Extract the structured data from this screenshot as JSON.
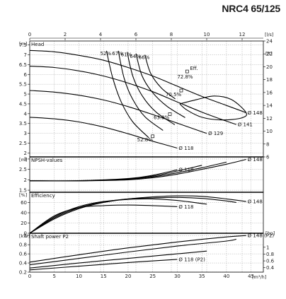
{
  "header": {
    "model": "NRC4 65/125"
  },
  "chart_data": {
    "type": "line",
    "x_top": {
      "unit": "[l/s]",
      "ticks": [
        0,
        2,
        4,
        6,
        8,
        10,
        12
      ],
      "range": [
        0,
        13.2
      ]
    },
    "x_bottom": {
      "unit": "[m³/h]",
      "ticks": [
        0,
        5,
        10,
        15,
        20,
        25,
        30,
        35,
        40,
        45
      ],
      "range": [
        0,
        47.5
      ]
    },
    "panels": [
      {
        "id": "head",
        "title": "Head",
        "yunit": "[m]",
        "ylim": [
          1.8,
          7.7
        ],
        "yticks": [
          2,
          2.5,
          3,
          3.5,
          4,
          4.5,
          5,
          5.5,
          6,
          6.5,
          7,
          7.5
        ],
        "ytick_labels": [
          "2",
          "2.5",
          "3",
          "3.5",
          "4",
          "4.5",
          "5",
          "5.5",
          "6",
          "6.5",
          "7",
          "7.5"
        ],
        "y2unit": "[ft]",
        "y2lim": [
          6,
          24
        ],
        "y2ticks": [
          6,
          8,
          10,
          12,
          14,
          16,
          18,
          20,
          22,
          24
        ],
        "curves": [
          {
            "label": "Ø 148",
            "x": [
              0,
              5,
              10,
              15,
              20,
              25,
              30,
              35,
              40,
              44
            ],
            "y": [
              7.22,
              7.15,
              6.97,
              6.72,
              6.35,
              5.92,
              5.4,
              4.88,
              4.42,
              4.05
            ]
          },
          {
            "label": "Ø 141",
            "x": [
              0,
              5,
              10,
              15,
              20,
              25,
              30,
              35,
              40,
              42
            ],
            "y": [
              6.42,
              6.35,
              6.18,
              5.92,
              5.56,
              5.12,
              4.6,
              4.08,
              3.62,
              3.45
            ]
          },
          {
            "label": "Ø 129",
            "x": [
              0,
              5,
              10,
              15,
              20,
              25,
              30,
              35,
              36
            ],
            "y": [
              5.18,
              5.1,
              4.94,
              4.7,
              4.36,
              3.96,
              3.52,
              3.08,
              3.0
            ]
          },
          {
            "label": "Ø 118",
            "x": [
              0,
              5,
              10,
              15,
              20,
              25,
              30
            ],
            "y": [
              3.82,
              3.74,
              3.58,
              3.32,
              2.98,
              2.6,
              2.25
            ]
          }
        ],
        "efficiency_lines": [
          {
            "label": "52%",
            "x": [
              15.6,
              16.9,
              18.6,
              20.9,
              24.2
            ],
            "y": [
              7.2,
              5.8,
              4.6,
              3.6,
              2.78
            ]
          },
          {
            "label": "67%",
            "x": [
              18.0,
              19.2,
              20.9,
              23.4,
              27.1
            ],
            "y": [
              7.2,
              5.8,
              4.75,
              3.85,
              3.15
            ]
          },
          {
            "label": "61%",
            "x": [
              19.8,
              21.0,
              22.9,
              25.7,
              29.5
            ],
            "y": [
              7.14,
              5.88,
              4.9,
              4.08,
              3.44
            ]
          },
          {
            "label": "64%",
            "x": [
              21.6,
              22.8,
              24.9,
              27.9,
              31.6
            ],
            "y": [
              7.06,
              5.95,
              5.1,
              4.38,
              3.8
            ]
          },
          {
            "label": "66%",
            "x": [
              23.4,
              24.6,
              26.8,
              29.6
            ],
            "y": [
              7.0,
              6.05,
              5.3,
              4.75
            ]
          }
        ],
        "eff_loop": {
          "x": [
            30.5,
            34,
            37.5,
            41,
            44,
            43,
            39,
            35,
            32,
            30.5
          ],
          "y": [
            4.5,
            4.72,
            4.9,
            4.72,
            4.05,
            3.78,
            3.68,
            3.82,
            4.18,
            4.5
          ]
        },
        "points": [
          {
            "label": "Eff.",
            "x": 32.0,
            "y": 6.15
          },
          {
            "label": "72.8%",
            "x": 32.0,
            "y": 6.15
          },
          {
            "label": "70.5%",
            "x": 30.8,
            "y": 5.18
          },
          {
            "label": "63.9%",
            "x": 28.5,
            "y": 3.98
          },
          {
            "label": "52.8%",
            "x": 25.0,
            "y": 2.85
          }
        ]
      },
      {
        "id": "npsh",
        "title": "NPSH-values",
        "yunit": "[m]",
        "ylim": [
          1.4,
          3.1
        ],
        "yticks": [
          1.5,
          2,
          2.5,
          3
        ],
        "ytick_labels": [
          "1.5",
          "2",
          "2.5",
          "3"
        ],
        "curves": [
          {
            "label": "Ø 148",
            "x": [
              0,
              10,
              20,
              25,
              30,
              35,
              40,
              44
            ],
            "y": [
              1.95,
              1.95,
              2.0,
              2.1,
              2.27,
              2.5,
              2.75,
              2.98
            ]
          },
          {
            "label": "Ø 118",
            "x": [
              0,
              10,
              20,
              25,
              30
            ],
            "y": [
              1.95,
              1.96,
              2.06,
              2.22,
              2.48
            ]
          },
          {
            "label": "",
            "x": [
              0,
              10,
              20,
              25,
              30,
              35,
              40
            ],
            "y": [
              1.95,
              1.95,
              2.02,
              2.14,
              2.34,
              2.58,
              2.85
            ]
          },
          {
            "label": "",
            "x": [
              0,
              10,
              20,
              25,
              30,
              35
            ],
            "y": [
              1.95,
              1.95,
              2.04,
              2.18,
              2.42,
              2.7
            ]
          }
        ]
      },
      {
        "id": "efficiency",
        "title": "Efficiency",
        "yunit": "[%]",
        "ylim": [
          0,
          80
        ],
        "yticks": [
          0,
          20,
          40,
          60
        ],
        "ytick_labels": [
          "0",
          "20",
          "40",
          "60"
        ],
        "curves": [
          {
            "label": "Ø 148",
            "x": [
              0,
              5,
              10,
              15,
              20,
              25,
              30,
              35,
              40,
              44
            ],
            "y": [
              0,
              28,
              48,
              60,
              67,
              71,
              73,
              72,
              67,
              62
            ]
          },
          {
            "label": "",
            "x": [
              0,
              5,
              10,
              15,
              20,
              25,
              30,
              35,
              40,
              42
            ],
            "y": [
              0,
              30,
              50,
              61,
              67,
              69,
              70,
              68,
              63,
              60
            ]
          },
          {
            "label": "",
            "x": [
              0,
              5,
              10,
              15,
              20,
              25,
              30,
              35,
              36
            ],
            "y": [
              0,
              32,
              52,
              62,
              66,
              67,
              64,
              58,
              57
            ]
          },
          {
            "label": "Ø 118",
            "x": [
              0,
              5,
              10,
              15,
              20,
              25,
              30
            ],
            "y": [
              0,
              34,
              50,
              54,
              55,
              54,
              52
            ]
          }
        ]
      },
      {
        "id": "power",
        "title": "Shaft power P2",
        "yunit": "[kW]",
        "ylim": [
          0.2,
          1.05
        ],
        "yticks": [
          0.2,
          0.4,
          0.6,
          0.8,
          1
        ],
        "ytick_labels": [
          "0.2",
          "0.4",
          "0.6",
          "0.8",
          "1"
        ],
        "y2unit": "[hp]",
        "y2lim": [
          0.27,
          1.41
        ],
        "y2ticks": [
          0.4,
          0.6,
          0.8,
          1
        ],
        "y2tick_labels": [
          "0.4",
          "0.6",
          "0.8",
          "1"
        ],
        "curves": [
          {
            "label": "Ø 148 (P2)",
            "x": [
              0,
              10,
              20,
              30,
              40,
              44
            ],
            "y": [
              0.42,
              0.58,
              0.73,
              0.86,
              0.97,
              1.0
            ]
          },
          {
            "label": "",
            "x": [
              0,
              10,
              20,
              30,
              40,
              42
            ],
            "y": [
              0.36,
              0.5,
              0.64,
              0.77,
              0.88,
              0.92
            ]
          },
          {
            "label": "",
            "x": [
              0,
              10,
              20,
              30,
              36
            ],
            "y": [
              0.29,
              0.4,
              0.5,
              0.6,
              0.66
            ]
          },
          {
            "label": "Ø 118 (P2)",
            "x": [
              0,
              10,
              20,
              30
            ],
            "y": [
              0.25,
              0.33,
              0.41,
              0.48
            ]
          }
        ]
      }
    ]
  }
}
